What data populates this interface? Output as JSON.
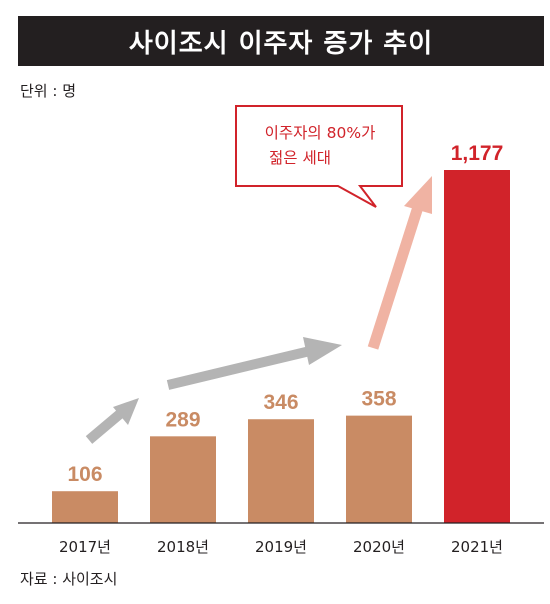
{
  "title": "사이조시 이주자 증가 추이",
  "unit": "단위 : 명",
  "source": "자료 : 사이조시",
  "callout": {
    "line1": "이주자의 80%가",
    "line2": "젊은 세대"
  },
  "colors": {
    "bar": "#c98b64",
    "highlight": "#d1232a",
    "arrow_gray": "#b4b4b4",
    "arrow_pink": "#f0b3a3"
  },
  "chart_data": {
    "type": "bar",
    "title": "사이조시 이주자 증가 추이",
    "ylabel": "",
    "unit": "명",
    "categories": [
      "2017년",
      "2018년",
      "2019년",
      "2020년",
      "2021년"
    ],
    "values": [
      106,
      289,
      346,
      358,
      1177
    ],
    "value_labels": [
      "106",
      "289",
      "346",
      "358",
      "1,177"
    ],
    "ylim": [
      0,
      1177
    ],
    "highlight_index": 4,
    "grid": false
  }
}
